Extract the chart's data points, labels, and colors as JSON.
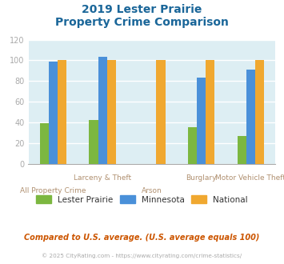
{
  "title_line1": "2019 Lester Prairie",
  "title_line2": "Property Crime Comparison",
  "categories": [
    "All Property Crime",
    "Larceny & Theft",
    "Arson",
    "Burglary",
    "Motor Vehicle Theft"
  ],
  "cat_top": [
    "",
    "Larceny & Theft",
    "",
    "Burglary",
    "Motor Vehicle Theft"
  ],
  "cat_bot": [
    "All Property Crime",
    "",
    "Arson",
    "",
    ""
  ],
  "lester_prairie": [
    39,
    42,
    0,
    35,
    27
  ],
  "minnesota": [
    99,
    103,
    0,
    83,
    91
  ],
  "national": [
    100,
    100,
    100,
    100,
    100
  ],
  "lp_color": "#7cb740",
  "mn_color": "#4a90d9",
  "nat_color": "#f0a830",
  "bg_color": "#ddeef3",
  "title_color": "#1a6699",
  "tick_color": "#aaaaaa",
  "xlab_color": "#b09070",
  "legend_text_color": "#333333",
  "footer_color": "#cc5500",
  "copy_color": "#aaaaaa",
  "ylabel_max": 120,
  "yticks": [
    0,
    20,
    40,
    60,
    80,
    100,
    120
  ],
  "footer_text": "Compared to U.S. average. (U.S. average equals 100)",
  "copyright_text": "© 2025 CityRating.com - https://www.cityrating.com/crime-statistics/",
  "legend_labels": [
    "Lester Prairie",
    "Minnesota",
    "National"
  ],
  "bar_width": 0.18
}
